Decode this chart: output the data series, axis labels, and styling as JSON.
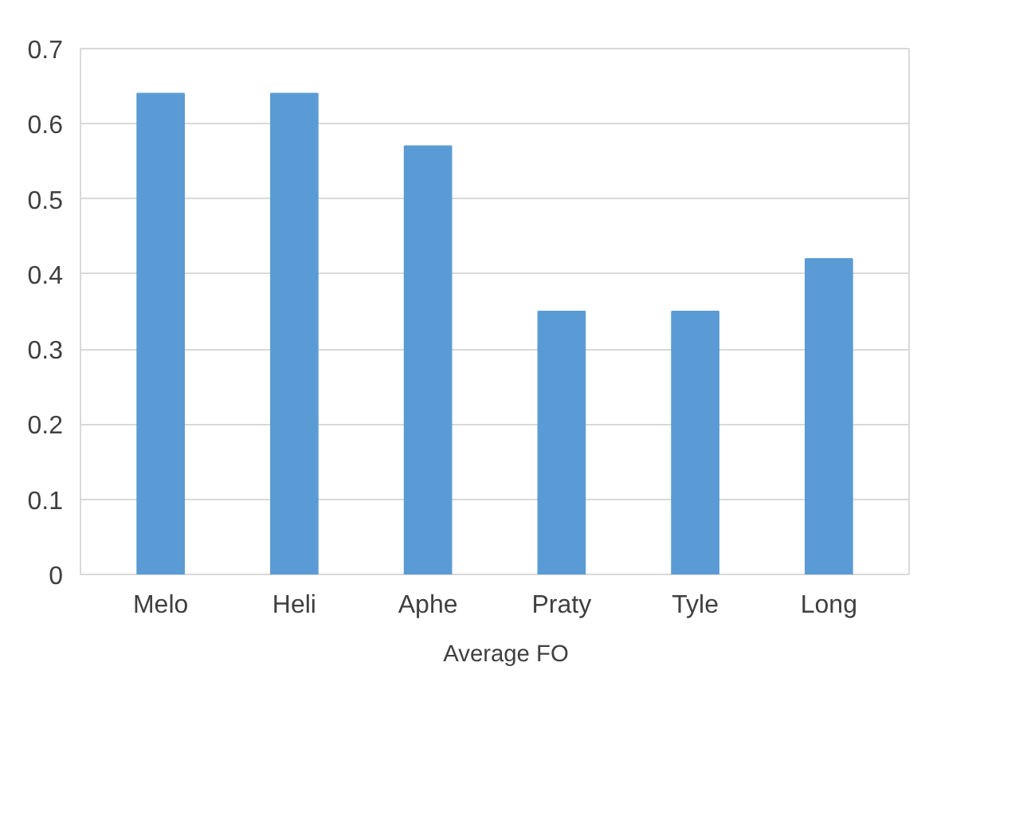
{
  "chart_data": {
    "type": "bar",
    "categories": [
      "Melo",
      "Heli",
      "Aphe",
      "Praty",
      "Tyle",
      "Long"
    ],
    "series": [
      {
        "name": "Average FO",
        "color": "#5b9bd5",
        "values": [
          0.64,
          0.64,
          0.57,
          0.35,
          0.35,
          0.42
        ]
      }
    ],
    "ylim": [
      0,
      0.7
    ],
    "yticks": [
      0,
      0.1,
      0.2,
      0.3,
      0.4,
      0.5,
      0.6,
      0.7
    ],
    "grid": "y",
    "legend": "bottom"
  }
}
